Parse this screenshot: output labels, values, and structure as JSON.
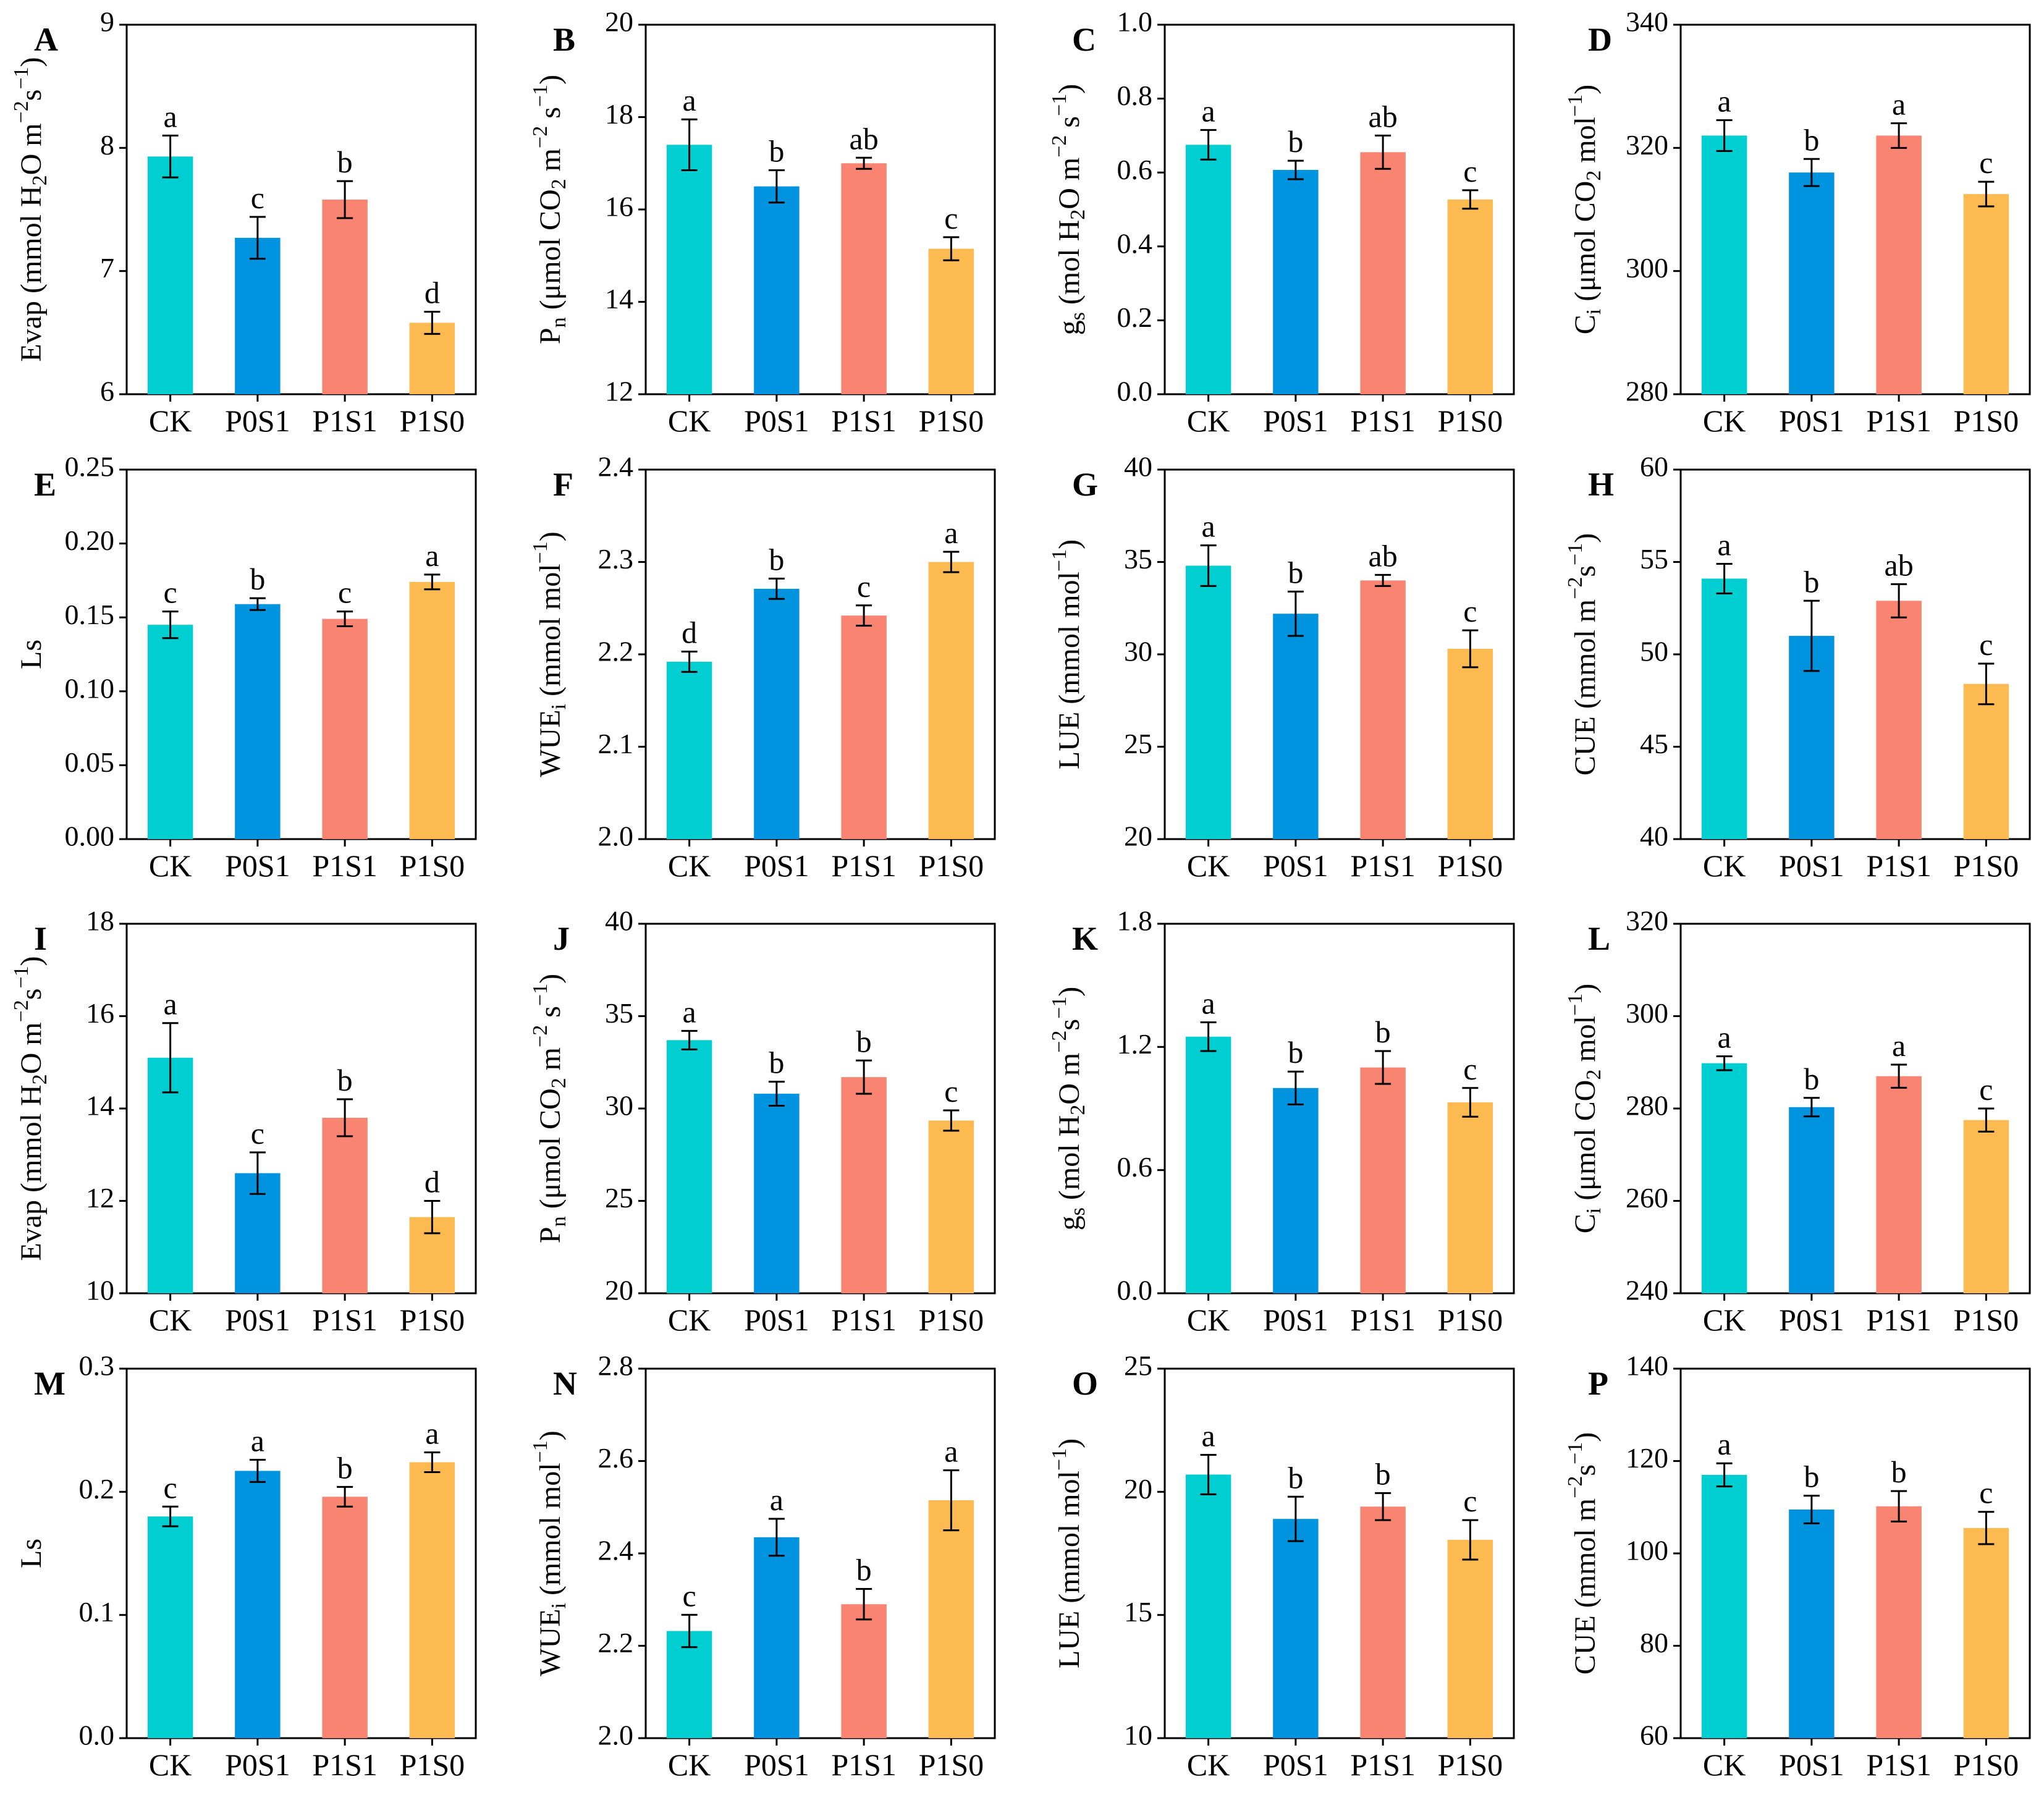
{
  "categories": [
    "CK",
    "P0S1",
    "P1S1",
    "P1S0"
  ],
  "colors": {
    "CK": "#00CED1",
    "P0S1": "#0094E0",
    "P1S1": "#FA8472",
    "P1S0": "#FDBA50",
    "axis": "#000000"
  },
  "chart_data": [
    {
      "panel": "A",
      "type": "bar",
      "title": "",
      "xlabel": "",
      "ylabel": {
        "base": "Evap (mmol H",
        "sub": "2",
        "rest": "O m",
        "sup": "−2",
        "mid": "s",
        "sup2": "−1",
        "end": ")"
      },
      "ylim": [
        6,
        9
      ],
      "ticks": [
        6,
        7,
        8,
        9
      ],
      "tick_labels": [
        "6",
        "7",
        "8",
        "9"
      ],
      "values": [
        7.93,
        7.27,
        7.58,
        6.58
      ],
      "errors": [
        0.17,
        0.17,
        0.15,
        0.09
      ],
      "letters": [
        "a",
        "c",
        "b",
        "d"
      ]
    },
    {
      "panel": "B",
      "type": "bar",
      "title": "",
      "xlabel": "",
      "ylabel": {
        "base": "P",
        "sub": "n",
        "rest": " (μmol CO",
        "sub2": "2",
        "rest2": " m",
        "sup": "−2",
        "mid": " s",
        "sup2": "−1",
        "end": ")"
      },
      "ylim": [
        12,
        20
      ],
      "ticks": [
        12,
        14,
        16,
        18,
        20
      ],
      "tick_labels": [
        "12",
        "14",
        "16",
        "18",
        "20"
      ],
      "values": [
        17.4,
        16.5,
        17.0,
        15.15
      ],
      "errors": [
        0.55,
        0.35,
        0.12,
        0.25
      ],
      "letters": [
        "a",
        "b",
        "ab",
        "c"
      ]
    },
    {
      "panel": "C",
      "type": "bar",
      "title": "",
      "xlabel": "",
      "ylabel": {
        "base": "g",
        "sub": "s",
        "rest": " (mol H",
        "sub2": "2",
        "rest2": "O m",
        "sup": "−2",
        "mid": " s",
        "sup2": "−1",
        "end": ")"
      },
      "ylim": [
        0,
        1.0
      ],
      "ticks": [
        0,
        0.2,
        0.4,
        0.6,
        0.8,
        1.0
      ],
      "tick_labels": [
        "0.0",
        "0.2",
        "0.4",
        "0.6",
        "0.8",
        "1.0"
      ],
      "values": [
        0.675,
        0.607,
        0.655,
        0.527
      ],
      "errors": [
        0.04,
        0.025,
        0.045,
        0.025
      ],
      "letters": [
        "a",
        "b",
        "ab",
        "c"
      ]
    },
    {
      "panel": "D",
      "type": "bar",
      "title": "",
      "xlabel": "",
      "ylabel": {
        "base": "C",
        "sub": "i",
        "rest": " (μmol CO",
        "sub2": "2",
        "rest2": " mol",
        "sup": "−1",
        "end": ")"
      },
      "ylim": [
        280,
        340
      ],
      "ticks": [
        280,
        300,
        320,
        340
      ],
      "tick_labels": [
        "280",
        "300",
        "320",
        "340"
      ],
      "values": [
        322,
        316,
        322,
        312.5
      ],
      "errors": [
        2.5,
        2.2,
        2.0,
        2.0
      ],
      "letters": [
        "a",
        "b",
        "a",
        "c"
      ]
    },
    {
      "panel": "E",
      "type": "bar",
      "title": "",
      "xlabel": "",
      "ylabel": {
        "base": "Ls"
      },
      "ylim": [
        0,
        0.25
      ],
      "ticks": [
        0,
        0.05,
        0.1,
        0.15,
        0.2,
        0.25
      ],
      "tick_labels": [
        "0.00",
        "0.05",
        "0.10",
        "0.15",
        "0.20",
        "0.25"
      ],
      "values": [
        0.145,
        0.159,
        0.149,
        0.174
      ],
      "errors": [
        0.009,
        0.004,
        0.005,
        0.005
      ],
      "letters": [
        "c",
        "b",
        "c",
        "a"
      ]
    },
    {
      "panel": "F",
      "type": "bar",
      "title": "",
      "xlabel": "",
      "ylabel": {
        "base": "WUE",
        "sub": "i",
        "rest": " (mmol mol",
        "sup": "−1",
        "end": ")"
      },
      "ylim": [
        2.0,
        2.4
      ],
      "ticks": [
        2.0,
        2.1,
        2.2,
        2.3,
        2.4
      ],
      "tick_labels": [
        "2.0",
        "2.1",
        "2.2",
        "2.3",
        "2.4"
      ],
      "values": [
        2.192,
        2.271,
        2.242,
        2.3
      ],
      "errors": [
        0.011,
        0.011,
        0.011,
        0.011
      ],
      "letters": [
        "d",
        "b",
        "c",
        "a"
      ]
    },
    {
      "panel": "G",
      "type": "bar",
      "title": "",
      "xlabel": "",
      "ylabel": {
        "base": "LUE (mmol mol",
        "sup": "−1",
        "end": ")"
      },
      "ylim": [
        20,
        40
      ],
      "ticks": [
        20,
        25,
        30,
        35,
        40
      ],
      "tick_labels": [
        "20",
        "25",
        "30",
        "35",
        "40"
      ],
      "values": [
        34.8,
        32.2,
        34.0,
        30.3
      ],
      "errors": [
        1.1,
        1.2,
        0.3,
        1.0
      ],
      "letters": [
        "a",
        "b",
        "ab",
        "c"
      ]
    },
    {
      "panel": "H",
      "type": "bar",
      "title": "",
      "xlabel": "",
      "ylabel": {
        "base": "CUE (mmol m",
        "sup": "−2",
        "mid": "s",
        "sup2": "−1",
        "end": ")"
      },
      "ylim": [
        40,
        60
      ],
      "ticks": [
        40,
        45,
        50,
        55,
        60
      ],
      "tick_labels": [
        "40",
        "45",
        "50",
        "55",
        "60"
      ],
      "values": [
        54.1,
        51.0,
        52.9,
        48.4
      ],
      "errors": [
        0.8,
        1.9,
        0.9,
        1.1
      ],
      "letters": [
        "a",
        "b",
        "ab",
        "c"
      ]
    },
    {
      "panel": "I",
      "type": "bar",
      "title": "",
      "xlabel": "",
      "ylabel": {
        "base": "Evap (mmol H",
        "sub": "2",
        "rest": "O m",
        "sup": "−2",
        "mid": "s",
        "sup2": "−1",
        "end": ")"
      },
      "ylim": [
        10,
        18
      ],
      "ticks": [
        10,
        12,
        14,
        16,
        18
      ],
      "tick_labels": [
        "10",
        "12",
        "14",
        "16",
        "18"
      ],
      "values": [
        15.1,
        12.6,
        13.8,
        11.65
      ],
      "errors": [
        0.75,
        0.45,
        0.4,
        0.35
      ],
      "letters": [
        "a",
        "c",
        "b",
        "d"
      ]
    },
    {
      "panel": "J",
      "type": "bar",
      "title": "",
      "xlabel": "",
      "ylabel": {
        "base": "P",
        "sub": "n",
        "rest": " (μmol CO",
        "sub2": "2",
        "rest2": "  m",
        "sup": "−2",
        "mid": " s",
        "sup2": "−1",
        "end": ")"
      },
      "ylim": [
        20,
        40
      ],
      "ticks": [
        20,
        25,
        30,
        35,
        40
      ],
      "tick_labels": [
        "20",
        "25",
        "30",
        "35",
        "40"
      ],
      "values": [
        33.7,
        30.8,
        31.7,
        29.35
      ],
      "errors": [
        0.5,
        0.65,
        0.9,
        0.55
      ],
      "letters": [
        "a",
        "b",
        "b",
        "c"
      ]
    },
    {
      "panel": "K",
      "type": "bar",
      "title": "",
      "xlabel": "",
      "ylabel": {
        "base": "g",
        "sub": "s",
        "rest": " (mol H",
        "sub2": "2",
        "rest2": "O m",
        "sup": "−2",
        "mid": "s",
        "sup2": "−1",
        "end": ")"
      },
      "ylim": [
        0,
        1.8
      ],
      "ticks": [
        0,
        0.6,
        1.2,
        1.8
      ],
      "tick_labels": [
        "0.0",
        "0.6",
        "1.2",
        "1.8"
      ],
      "values": [
        1.25,
        1.0,
        1.1,
        0.93
      ],
      "errors": [
        0.07,
        0.08,
        0.08,
        0.07
      ],
      "letters": [
        "a",
        "b",
        "b",
        "c"
      ]
    },
    {
      "panel": "L",
      "type": "bar",
      "title": "",
      "xlabel": "",
      "ylabel": {
        "base": "C",
        "sub": "i",
        "rest": " (μmol CO",
        "sub2": "2",
        "rest2": " mol",
        "sup": "−1",
        "end": ")"
      },
      "ylim": [
        240,
        320
      ],
      "ticks": [
        240,
        260,
        280,
        300,
        320
      ],
      "tick_labels": [
        "240",
        "260",
        "280",
        "300",
        "320"
      ],
      "values": [
        289.8,
        280.3,
        287.0,
        277.5
      ],
      "errors": [
        1.5,
        2.0,
        2.5,
        2.5
      ],
      "letters": [
        "a",
        "b",
        "a",
        "c"
      ]
    },
    {
      "panel": "M",
      "type": "bar",
      "title": "",
      "xlabel": "",
      "ylabel": {
        "base": "Ls"
      },
      "ylim": [
        0,
        0.3
      ],
      "ticks": [
        0,
        0.1,
        0.2,
        0.3
      ],
      "tick_labels": [
        "0.0",
        "0.1",
        "0.2",
        "0.3"
      ],
      "values": [
        0.18,
        0.217,
        0.196,
        0.224
      ],
      "errors": [
        0.008,
        0.009,
        0.008,
        0.008
      ],
      "letters": [
        "c",
        "a",
        "b",
        "a"
      ]
    },
    {
      "panel": "N",
      "type": "bar",
      "title": "",
      "xlabel": "",
      "ylabel": {
        "base": "WUE",
        "sub": "i",
        "rest": " (mmol mol",
        "sup": "−1",
        "end": ")"
      },
      "ylim": [
        2.0,
        2.8
      ],
      "ticks": [
        2.0,
        2.2,
        2.4,
        2.6,
        2.8
      ],
      "tick_labels": [
        "2.0",
        "2.2",
        "2.4",
        "2.6",
        "2.8"
      ],
      "values": [
        2.232,
        2.435,
        2.29,
        2.515
      ],
      "errors": [
        0.035,
        0.04,
        0.033,
        0.065
      ],
      "letters": [
        "c",
        "a",
        "b",
        "a"
      ]
    },
    {
      "panel": "O",
      "type": "bar",
      "title": "",
      "xlabel": "",
      "ylabel": {
        "base": "LUE (mmol mol",
        "sup": "−1",
        "end": ")"
      },
      "ylim": [
        10,
        25
      ],
      "ticks": [
        10,
        15,
        20,
        25
      ],
      "tick_labels": [
        "10",
        "15",
        "20",
        "25"
      ],
      "values": [
        20.7,
        18.9,
        19.4,
        18.05
      ],
      "errors": [
        0.8,
        0.9,
        0.55,
        0.8
      ],
      "letters": [
        "a",
        "b",
        "b",
        "c"
      ]
    },
    {
      "panel": "P",
      "type": "bar",
      "title": "",
      "xlabel": "",
      "ylabel": {
        "base": "CUE (mmol m",
        "sup": "−2",
        "mid": "s",
        "sup2": "−1",
        "end": ")"
      },
      "ylim": [
        60,
        140
      ],
      "ticks": [
        60,
        80,
        100,
        120,
        140
      ],
      "tick_labels": [
        "60",
        "80",
        "100",
        "120",
        "140"
      ],
      "values": [
        117.0,
        109.5,
        110.2,
        105.5
      ],
      "errors": [
        2.5,
        3.0,
        3.3,
        3.5
      ],
      "letters": [
        "a",
        "b",
        "b",
        "c"
      ]
    }
  ]
}
